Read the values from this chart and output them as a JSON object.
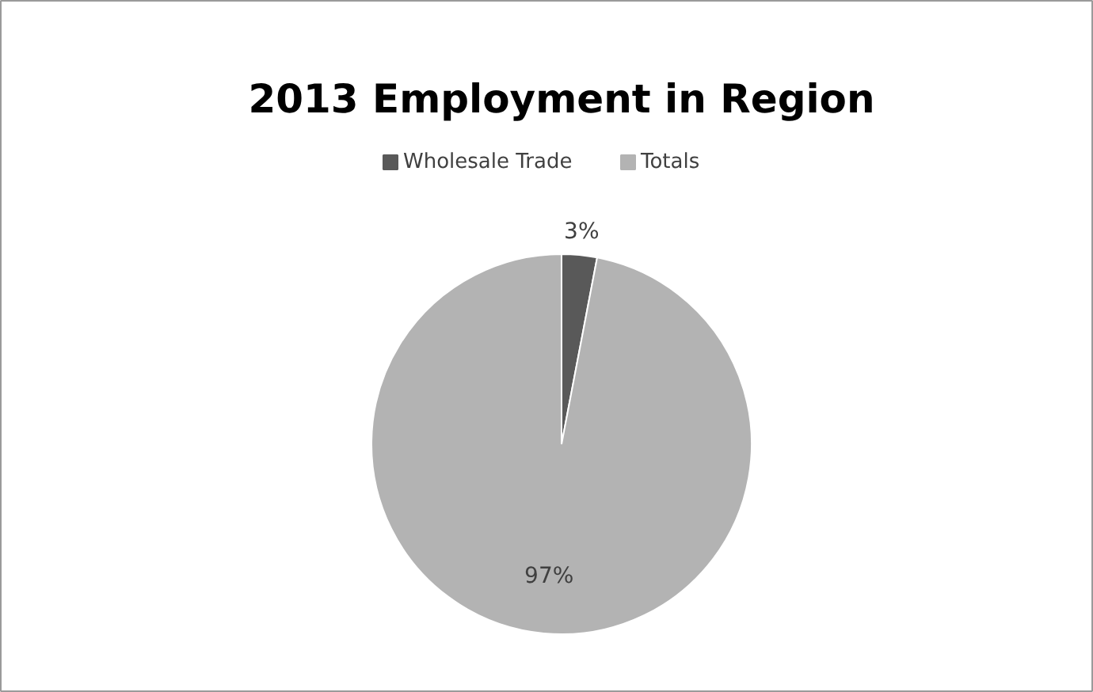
{
  "chart_data": {
    "type": "pie",
    "title": "2013 Employment in Region",
    "categories": [
      "Wholesale Trade",
      "Totals"
    ],
    "values": [
      3,
      97
    ],
    "colors": [
      "#595959",
      "#b3b3b3"
    ],
    "value_labels": [
      "3%",
      "97%"
    ],
    "legend": "top"
  }
}
